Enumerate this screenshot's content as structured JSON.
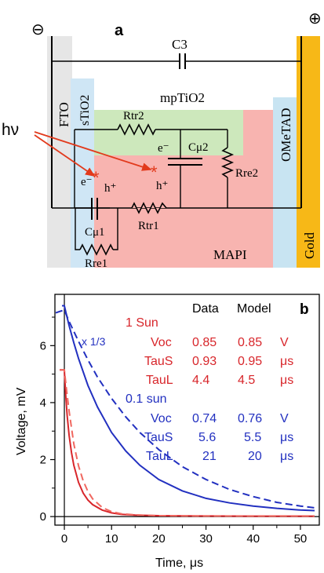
{
  "panel_a": {
    "panel_label": "a",
    "terminal_minus": "⊖",
    "terminal_plus": "⊕",
    "layers": {
      "fto": "FTO",
      "stio2": "sTiO2",
      "mptio2": "mpTiO2",
      "mapi": "MAPI",
      "ometad": "OMeTAD",
      "gold": "Gold"
    },
    "components": {
      "c3": "C3",
      "rtr2": "Rtr2",
      "cmu2": "Cμ2",
      "rre2": "Rre2",
      "rtr1": "Rtr1",
      "cmu1": "Cμ1",
      "rre1": "Rre1"
    },
    "carriers": {
      "electron_1": "e⁻",
      "hole_1": "h⁺",
      "electron_2": "e⁻",
      "hole_2": "h⁺"
    },
    "photon": "hν",
    "colors": {
      "fto": "#e6e6e6",
      "stio2": "#cfe6f5",
      "mptio2": "#cde8bc",
      "mapi": "#f8b4b0",
      "ometad": "#c8e4f2",
      "gold": "#f7b817",
      "arrow": "#e23a1c"
    }
  },
  "panel_b": {
    "panel_label": "b",
    "scale_note": "x 1/3",
    "table": {
      "header_data": "Data",
      "header_model": "Model",
      "group_1": {
        "label": "1 Sun",
        "rows": [
          {
            "name": "Voc",
            "data": "0.85",
            "model": "0.85",
            "unit": "V"
          },
          {
            "name": "TauS",
            "data": "0.93",
            "model": "0.95",
            "unit": "μs"
          },
          {
            "name": "TauL",
            "data": "4.4",
            "model": "4.5",
            "unit": "μs"
          }
        ]
      },
      "group_2": {
        "label": "0.1 sun",
        "rows": [
          {
            "name": "Voc",
            "data": "0.74",
            "model": "0.76",
            "unit": "V"
          },
          {
            "name": "TauS",
            "data": "5.6",
            "model": "5.5",
            "unit": "μs"
          },
          {
            "name": "TauL",
            "data": "21",
            "model": "20",
            "unit": "μs"
          }
        ]
      }
    },
    "colors": {
      "red": "#d8262b",
      "blue": "#2230c0",
      "red_model": "#f0675f"
    }
  },
  "chart_data": {
    "type": "line",
    "title": "",
    "xlabel": "Time, μs",
    "ylabel": "Voltage, mV",
    "xlim": [
      -2,
      54
    ],
    "ylim": [
      -0.3,
      7.8
    ],
    "x_ticks": [
      0,
      10,
      20,
      30,
      40,
      50
    ],
    "y_ticks": [
      0,
      2,
      4,
      6
    ],
    "grid": false,
    "series": [
      {
        "name": "0.1 sun data",
        "color": "#2230c0",
        "dash": "solid",
        "x": [
          -0.5,
          0,
          1,
          2,
          3,
          5,
          7,
          10,
          13,
          16,
          20,
          25,
          30,
          35,
          40,
          45,
          50,
          53
        ],
        "y": [
          7.4,
          7.4,
          6.7,
          6.1,
          5.55,
          4.6,
          3.85,
          2.95,
          2.3,
          1.8,
          1.3,
          0.9,
          0.64,
          0.48,
          0.37,
          0.29,
          0.23,
          0.21
        ]
      },
      {
        "name": "0.1 sun model",
        "color": "#2230c0",
        "dash": "dashed",
        "x": [
          -2,
          -1,
          0,
          1,
          2,
          3,
          5,
          7,
          10,
          13,
          16,
          20,
          25,
          30,
          35,
          40,
          45,
          50,
          53
        ],
        "y": [
          7.15,
          7.2,
          7.25,
          6.85,
          6.5,
          6.15,
          5.5,
          4.9,
          4.15,
          3.5,
          2.95,
          2.35,
          1.75,
          1.3,
          0.95,
          0.7,
          0.5,
          0.37,
          0.31
        ]
      },
      {
        "name": "1 Sun data",
        "color": "#d8262b",
        "dash": "solid",
        "x": [
          -1,
          0,
          0.3,
          0.6,
          1,
          1.5,
          2,
          3,
          4,
          5,
          6,
          8,
          10,
          12,
          15,
          20,
          30,
          40,
          53
        ],
        "y": [
          5.15,
          5.15,
          4.25,
          3.55,
          2.85,
          2.25,
          1.8,
          1.2,
          0.82,
          0.58,
          0.42,
          0.23,
          0.13,
          0.08,
          0.05,
          0.03,
          0.02,
          0.015,
          0.015
        ]
      },
      {
        "name": "1 Sun model",
        "color": "#f0675f",
        "dash": "dashed",
        "x": [
          -1,
          0,
          0.5,
          1,
          2,
          3,
          4,
          5,
          6,
          8,
          10,
          12,
          15,
          20,
          30,
          53
        ],
        "y": [
          5.15,
          5.15,
          4.4,
          3.7,
          2.55,
          1.78,
          1.25,
          0.88,
          0.62,
          0.32,
          0.17,
          0.1,
          0.06,
          0.03,
          0.02,
          0.02
        ]
      }
    ]
  }
}
